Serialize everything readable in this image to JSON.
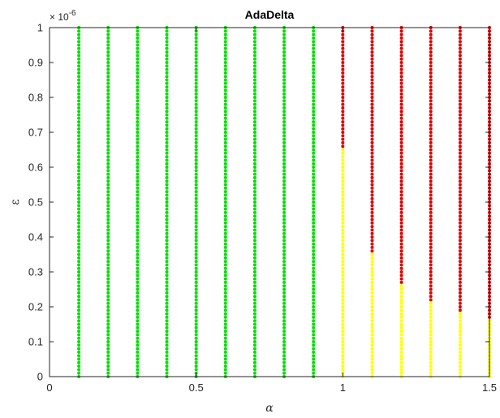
{
  "chart_data": {
    "type": "scatter",
    "title": "AdaDelta",
    "xlabel": "α",
    "ylabel": "ε",
    "y_exponent_label": "× 10",
    "y_exponent_power": "-6",
    "xlim": [
      0,
      1.5
    ],
    "ylim": [
      0,
      1
    ],
    "grid": false,
    "x_ticks": [
      0,
      0.5,
      1,
      1.5
    ],
    "x_tick_labels": [
      "0",
      "0.5",
      "1",
      "1.5"
    ],
    "y_ticks": [
      0,
      0.1,
      0.2,
      0.3,
      0.4,
      0.5,
      0.6,
      0.7,
      0.8,
      0.9,
      1
    ],
    "y_tick_labels": [
      "0",
      "0.1",
      "0.2",
      "0.3",
      "0.4",
      "0.5",
      "0.6",
      "0.7",
      "0.8",
      "0.9",
      "1"
    ],
    "y_sample_count": 100,
    "colors": {
      "green": "#00e000",
      "yellow": "#ffff00",
      "red": "#e00000"
    },
    "columns": [
      {
        "alpha": 0.1,
        "segments": [
          {
            "color": "green",
            "from": 0,
            "to": 1
          }
        ]
      },
      {
        "alpha": 0.2,
        "segments": [
          {
            "color": "green",
            "from": 0,
            "to": 1
          }
        ]
      },
      {
        "alpha": 0.3,
        "segments": [
          {
            "color": "green",
            "from": 0,
            "to": 1
          }
        ]
      },
      {
        "alpha": 0.4,
        "segments": [
          {
            "color": "green",
            "from": 0,
            "to": 1
          }
        ]
      },
      {
        "alpha": 0.5,
        "segments": [
          {
            "color": "green",
            "from": 0,
            "to": 1
          }
        ]
      },
      {
        "alpha": 0.6,
        "segments": [
          {
            "color": "green",
            "from": 0,
            "to": 1
          }
        ]
      },
      {
        "alpha": 0.7,
        "segments": [
          {
            "color": "green",
            "from": 0,
            "to": 1
          }
        ]
      },
      {
        "alpha": 0.8,
        "segments": [
          {
            "color": "green",
            "from": 0,
            "to": 1
          }
        ]
      },
      {
        "alpha": 0.9,
        "segments": [
          {
            "color": "green",
            "from": 0,
            "to": 1
          }
        ]
      },
      {
        "alpha": 1.0,
        "segments": [
          {
            "color": "yellow",
            "from": 0,
            "to": 0.66
          },
          {
            "color": "red",
            "from": 0.66,
            "to": 1
          }
        ]
      },
      {
        "alpha": 1.1,
        "segments": [
          {
            "color": "yellow",
            "from": 0,
            "to": 0.36
          },
          {
            "color": "red",
            "from": 0.36,
            "to": 1
          }
        ]
      },
      {
        "alpha": 1.2,
        "segments": [
          {
            "color": "yellow",
            "from": 0,
            "to": 0.27
          },
          {
            "color": "red",
            "from": 0.27,
            "to": 1
          }
        ]
      },
      {
        "alpha": 1.3,
        "segments": [
          {
            "color": "yellow",
            "from": 0,
            "to": 0.22
          },
          {
            "color": "red",
            "from": 0.22,
            "to": 1
          }
        ]
      },
      {
        "alpha": 1.4,
        "segments": [
          {
            "color": "yellow",
            "from": 0,
            "to": 0.19
          },
          {
            "color": "red",
            "from": 0.19,
            "to": 1
          }
        ]
      },
      {
        "alpha": 1.5,
        "segments": [
          {
            "color": "yellow",
            "from": 0,
            "to": 0.17
          },
          {
            "color": "red",
            "from": 0.17,
            "to": 1
          }
        ]
      }
    ]
  }
}
